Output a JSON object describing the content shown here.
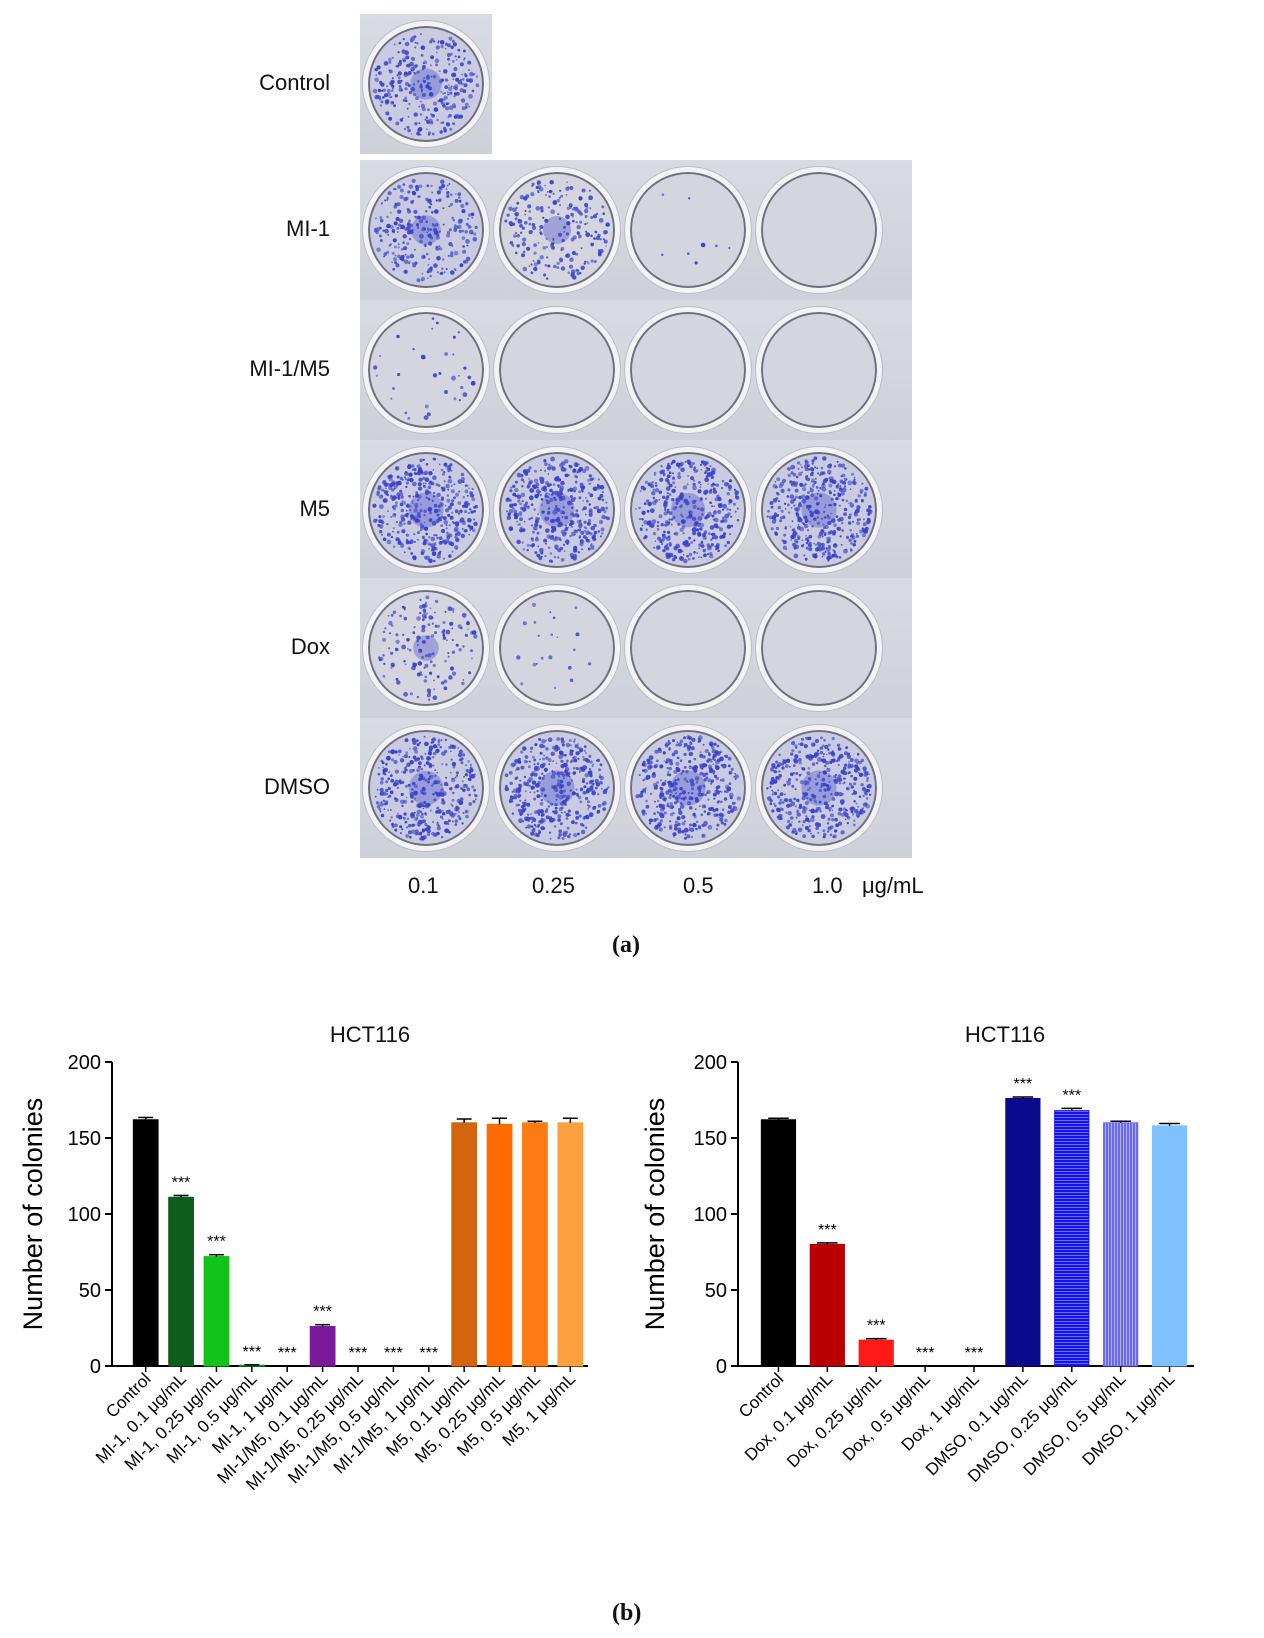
{
  "panel_a": {
    "rows": [
      {
        "label": "Control",
        "wells": [
          0.7
        ]
      },
      {
        "label": "MI-1",
        "wells": [
          0.6,
          0.5,
          0.02,
          0.0
        ]
      },
      {
        "label": "MI-1/M5",
        "wells": [
          0.08,
          0.0,
          0.0,
          0.0
        ]
      },
      {
        "label": "M5",
        "wells": [
          0.95,
          0.95,
          0.9,
          0.95
        ]
      },
      {
        "label": "Dox",
        "wells": [
          0.35,
          0.05,
          0.0,
          0.0
        ]
      },
      {
        "label": "DMSO",
        "wells": [
          0.9,
          0.95,
          0.95,
          0.95
        ]
      }
    ],
    "doses": [
      "0.1",
      "0.25",
      "0.5",
      "1.0"
    ],
    "dose_unit": "μg/mL",
    "stain_color": "#3b41c9",
    "tag": "(a)"
  },
  "panel_b_tag": "(b)",
  "chart_data": [
    {
      "type": "bar",
      "title": "HCT116",
      "ylabel": "Number  of  colonies",
      "ylim": [
        0,
        200
      ],
      "yticks": [
        0,
        50,
        100,
        150,
        200
      ],
      "categories": [
        "Control",
        "MI-1, 0.1 μg/mL",
        "MI-1, 0.25 μg/mL",
        "MI-1, 0.5 μg/mL",
        "MI-1, 1 μg/mL",
        "MI-1/M5, 0.1 μg/mL",
        "MI-1/M5, 0.25 μg/mL",
        "MI-1/M5, 0.5 μg/mL",
        "MI-1/M5, 1 μg/mL",
        "M5, 0.1 μg/mL",
        "M5, 0.25 μg/mL",
        "M5, 0.5 μg/mL",
        "M5, 1 μg/mL"
      ],
      "values": [
        162,
        111,
        72,
        0.5,
        0,
        26,
        0,
        0,
        0,
        160,
        159,
        160,
        160
      ],
      "errors": [
        1.5,
        1.2,
        1.2,
        0.3,
        0,
        1.2,
        0,
        0,
        0,
        2.5,
        4,
        1,
        3
      ],
      "annotations": [
        "",
        "***",
        "***",
        "***",
        "***",
        "***",
        "***",
        "***",
        "***",
        "",
        "",
        "",
        ""
      ],
      "colors": [
        "#000000",
        "#0f5c1f",
        "#12c41a",
        "#0f8a2a",
        "#1a6e1a",
        "#7a1a9a",
        "#cccccc",
        "#cccccc",
        "#cccccc",
        "#d2650e",
        "#ff6a00",
        "#ff7a14",
        "#ffa040"
      ],
      "patterns": [
        "",
        "",
        "",
        "",
        "",
        "",
        "",
        "",
        "",
        "",
        "",
        "",
        ""
      ]
    },
    {
      "type": "bar",
      "title": "HCT116",
      "ylabel": "Number  of  colonies",
      "ylim": [
        0,
        200
      ],
      "yticks": [
        0,
        50,
        100,
        150,
        200
      ],
      "categories": [
        "Control",
        "Dox, 0.1 μg/mL",
        "Dox, 0.25 μg/mL",
        "Dox, 0.5 μg/mL",
        "Dox, 1 μg/mL",
        "DMSO, 0.1 μg/mL",
        "DMSO, 0.25 μg/mL",
        "DMSO, 0.5 μg/mL",
        "DMSO, 1 μg/mL"
      ],
      "values": [
        162,
        80,
        17,
        0,
        0,
        176,
        168,
        160,
        158
      ],
      "errors": [
        1,
        1,
        1,
        0,
        0,
        1,
        1.5,
        1,
        1.5
      ],
      "annotations": [
        "",
        "***",
        "***",
        "***",
        "***",
        "***",
        "***",
        "",
        ""
      ],
      "colors": [
        "#000000",
        "#b80000",
        "#ff1a1a",
        "#cc0000",
        "#cc0000",
        "#0a0a8c",
        "#1414e6",
        "#6a6af0",
        "#7fc0ff"
      ],
      "patterns": [
        "",
        "",
        "",
        "",
        "",
        "",
        "hlines",
        "vlines",
        ""
      ]
    }
  ]
}
